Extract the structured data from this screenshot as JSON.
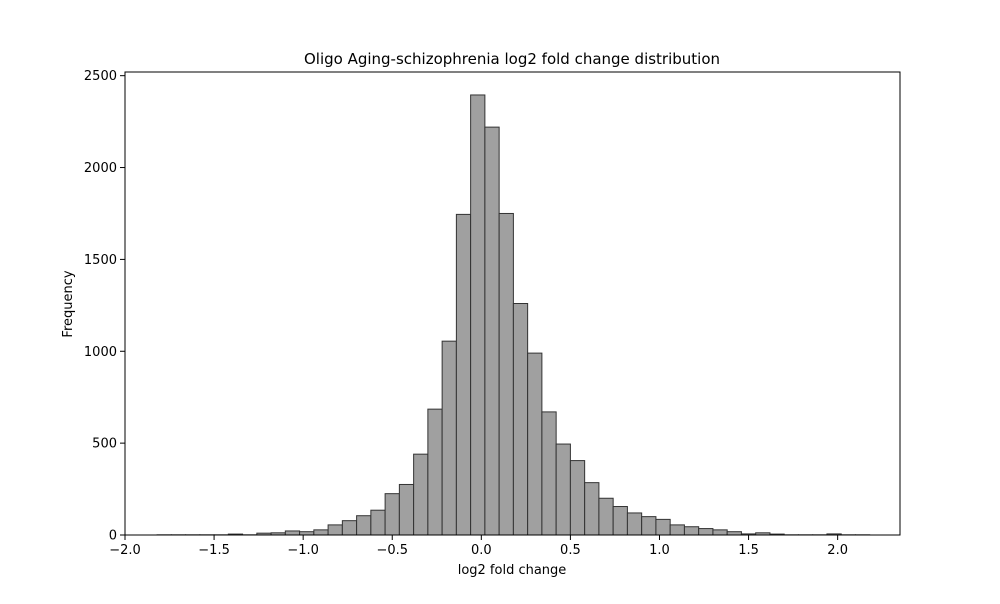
{
  "chart_data": {
    "type": "bar",
    "title": "Oligo Aging-schizophrenia log2 fold change distribution",
    "xlabel": "log2 fold change",
    "ylabel": "Frequency",
    "xlim": [
      -2.0,
      2.35
    ],
    "ylim": [
      0,
      2520
    ],
    "xticks": [
      -2.0,
      -1.5,
      -1.0,
      -0.5,
      0.0,
      0.5,
      1.0,
      1.5,
      2.0
    ],
    "xtick_labels": [
      "−2.0",
      "−1.5",
      "−1.0",
      "−0.5",
      "0.0",
      "0.5",
      "1.0",
      "1.5",
      "2.0"
    ],
    "yticks": [
      0,
      500,
      1000,
      1500,
      2000,
      2500
    ],
    "ytick_labels": [
      "0",
      "500",
      "1000",
      "1500",
      "2000",
      "2500"
    ],
    "grid": false,
    "bar_fill": "#a0a0a0",
    "bar_edge": "#333333",
    "bins": [
      {
        "x0": -1.82,
        "x1": -1.74,
        "count": 1
      },
      {
        "x0": -1.74,
        "x1": -1.66,
        "count": 1
      },
      {
        "x0": -1.66,
        "x1": -1.58,
        "count": 1
      },
      {
        "x0": -1.58,
        "x1": -1.5,
        "count": 1
      },
      {
        "x0": -1.5,
        "x1": -1.42,
        "count": 1
      },
      {
        "x0": -1.42,
        "x1": -1.34,
        "count": 5
      },
      {
        "x0": -1.34,
        "x1": -1.26,
        "count": 1
      },
      {
        "x0": -1.26,
        "x1": -1.18,
        "count": 10
      },
      {
        "x0": -1.18,
        "x1": -1.1,
        "count": 12
      },
      {
        "x0": -1.1,
        "x1": -1.02,
        "count": 22
      },
      {
        "x0": -1.02,
        "x1": -0.94,
        "count": 18
      },
      {
        "x0": -0.94,
        "x1": -0.86,
        "count": 28
      },
      {
        "x0": -0.86,
        "x1": -0.78,
        "count": 55
      },
      {
        "x0": -0.78,
        "x1": -0.7,
        "count": 78
      },
      {
        "x0": -0.7,
        "x1": -0.62,
        "count": 105
      },
      {
        "x0": -0.62,
        "x1": -0.54,
        "count": 135
      },
      {
        "x0": -0.54,
        "x1": -0.46,
        "count": 225
      },
      {
        "x0": -0.46,
        "x1": -0.38,
        "count": 275
      },
      {
        "x0": -0.38,
        "x1": -0.3,
        "count": 440
      },
      {
        "x0": -0.3,
        "x1": -0.22,
        "count": 685
      },
      {
        "x0": -0.22,
        "x1": -0.14,
        "count": 1055
      },
      {
        "x0": -0.14,
        "x1": -0.06,
        "count": 1745
      },
      {
        "x0": -0.06,
        "x1": 0.02,
        "count": 2395
      },
      {
        "x0": 0.02,
        "x1": 0.1,
        "count": 2220
      },
      {
        "x0": 0.1,
        "x1": 0.18,
        "count": 1750
      },
      {
        "x0": 0.18,
        "x1": 0.26,
        "count": 1260
      },
      {
        "x0": 0.26,
        "x1": 0.34,
        "count": 990
      },
      {
        "x0": 0.34,
        "x1": 0.42,
        "count": 670
      },
      {
        "x0": 0.42,
        "x1": 0.5,
        "count": 495
      },
      {
        "x0": 0.5,
        "x1": 0.58,
        "count": 405
      },
      {
        "x0": 0.58,
        "x1": 0.66,
        "count": 285
      },
      {
        "x0": 0.66,
        "x1": 0.74,
        "count": 200
      },
      {
        "x0": 0.74,
        "x1": 0.82,
        "count": 155
      },
      {
        "x0": 0.82,
        "x1": 0.9,
        "count": 120
      },
      {
        "x0": 0.9,
        "x1": 0.98,
        "count": 100
      },
      {
        "x0": 0.98,
        "x1": 1.06,
        "count": 85
      },
      {
        "x0": 1.06,
        "x1": 1.14,
        "count": 55
      },
      {
        "x0": 1.14,
        "x1": 1.22,
        "count": 45
      },
      {
        "x0": 1.22,
        "x1": 1.3,
        "count": 35
      },
      {
        "x0": 1.3,
        "x1": 1.38,
        "count": 28
      },
      {
        "x0": 1.38,
        "x1": 1.46,
        "count": 18
      },
      {
        "x0": 1.46,
        "x1": 1.54,
        "count": 6
      },
      {
        "x0": 1.54,
        "x1": 1.62,
        "count": 12
      },
      {
        "x0": 1.62,
        "x1": 1.7,
        "count": 5
      },
      {
        "x0": 1.7,
        "x1": 1.78,
        "count": 1
      },
      {
        "x0": 1.78,
        "x1": 1.86,
        "count": 1
      },
      {
        "x0": 1.86,
        "x1": 1.94,
        "count": 1
      },
      {
        "x0": 1.94,
        "x1": 2.02,
        "count": 6
      },
      {
        "x0": 2.02,
        "x1": 2.1,
        "count": 1
      },
      {
        "x0": 2.1,
        "x1": 2.18,
        "count": 1
      }
    ]
  }
}
